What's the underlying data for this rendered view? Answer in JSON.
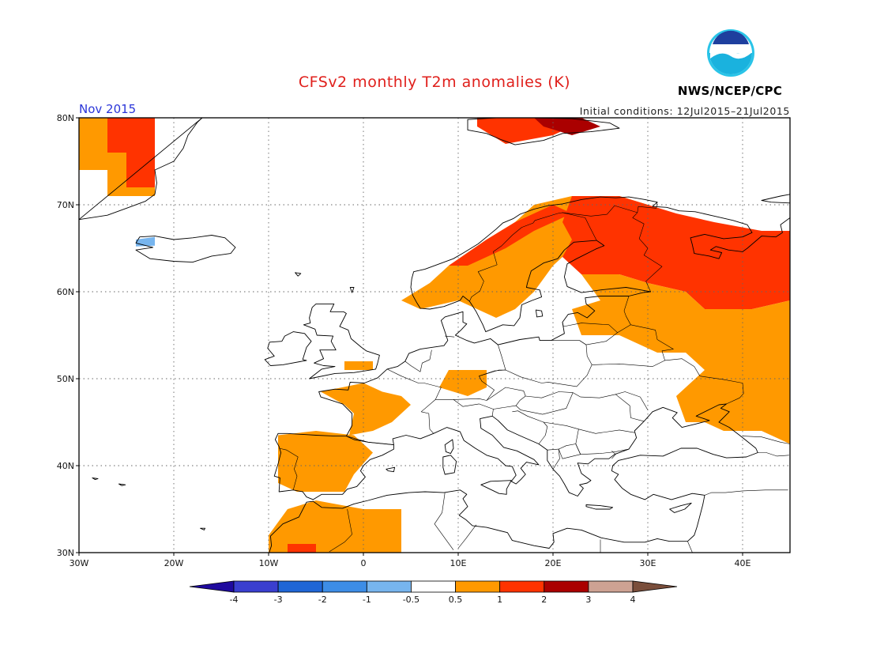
{
  "header": {
    "title": "CFSv2 monthly T2m anomalies (K)",
    "agency": "NWS/NCEP/CPC",
    "logo_text": "NOAA",
    "month_label": "Nov 2015",
    "initial_conditions": "Initial conditions: 12Jul2015–21Jul2015"
  },
  "map": {
    "lon_range": [
      -30,
      45
    ],
    "lat_range": [
      30,
      80
    ],
    "lon_ticks": [
      {
        "value": -30,
        "label": "30W"
      },
      {
        "value": -20,
        "label": "20W"
      },
      {
        "value": -10,
        "label": "10W"
      },
      {
        "value": 0,
        "label": "0"
      },
      {
        "value": 10,
        "label": "10E"
      },
      {
        "value": 20,
        "label": "20E"
      },
      {
        "value": 30,
        "label": "30E"
      },
      {
        "value": 40,
        "label": "40E"
      }
    ],
    "lat_ticks": [
      {
        "value": 30,
        "label": "30N"
      },
      {
        "value": 40,
        "label": "40N"
      },
      {
        "value": 50,
        "label": "50N"
      },
      {
        "value": 60,
        "label": "60N"
      },
      {
        "value": 70,
        "label": "70N"
      },
      {
        "value": 80,
        "label": "80N"
      }
    ],
    "grid": true,
    "anomaly_regions": [
      {
        "class": "0.5-1",
        "color": "#ff9900",
        "lonlat": [
          [
            -30,
            80
          ],
          [
            -22,
            80
          ],
          [
            -22,
            71
          ],
          [
            -27,
            71
          ],
          [
            -27,
            74
          ],
          [
            -30,
            74
          ]
        ]
      },
      {
        "class": "1-2",
        "color": "#ff3300",
        "lonlat": [
          [
            -27,
            80
          ],
          [
            -22,
            80
          ],
          [
            -22,
            72
          ],
          [
            -25,
            72
          ],
          [
            -25,
            76
          ],
          [
            -27,
            76
          ]
        ]
      },
      {
        "class": "0.5-1",
        "color": "#ff9900",
        "lonlat": [
          [
            4,
            59
          ],
          [
            7,
            61
          ],
          [
            9,
            63
          ],
          [
            13,
            66
          ],
          [
            16,
            68
          ],
          [
            18,
            70
          ],
          [
            22,
            71
          ],
          [
            27,
            71
          ],
          [
            30,
            70
          ],
          [
            29,
            68
          ],
          [
            26,
            66
          ],
          [
            23,
            66
          ],
          [
            20,
            63
          ],
          [
            18,
            60
          ],
          [
            16,
            58
          ],
          [
            14,
            57
          ],
          [
            12,
            58
          ],
          [
            10,
            59
          ],
          [
            6,
            58
          ]
        ]
      },
      {
        "class": "1-2",
        "color": "#ff3300",
        "lonlat": [
          [
            9,
            63
          ],
          [
            13,
            66
          ],
          [
            16,
            68
          ],
          [
            18,
            69
          ],
          [
            20,
            70
          ],
          [
            22,
            69
          ],
          [
            18,
            67
          ],
          [
            15,
            65
          ],
          [
            11,
            63
          ]
        ]
      },
      {
        "class": "1-2",
        "color": "#ff3300",
        "lonlat": [
          [
            22,
            71
          ],
          [
            27,
            71
          ],
          [
            30,
            70
          ],
          [
            33,
            69
          ],
          [
            37,
            68
          ],
          [
            42,
            67
          ],
          [
            45,
            67
          ],
          [
            45,
            59
          ],
          [
            41,
            58
          ],
          [
            36,
            58
          ],
          [
            34,
            60
          ],
          [
            30,
            61
          ],
          [
            27,
            62
          ],
          [
            23,
            62
          ],
          [
            21,
            64
          ],
          [
            22,
            66
          ],
          [
            21,
            68
          ]
        ]
      },
      {
        "class": "0.5-1",
        "color": "#ff9900",
        "lonlat": [
          [
            23,
            62
          ],
          [
            27,
            62
          ],
          [
            30,
            61
          ],
          [
            34,
            60
          ],
          [
            36,
            58
          ],
          [
            41,
            58
          ],
          [
            45,
            59
          ],
          [
            45,
            42.5
          ],
          [
            42,
            44
          ],
          [
            38,
            44
          ],
          [
            36,
            45
          ],
          [
            34,
            45
          ],
          [
            33,
            48
          ],
          [
            36,
            51
          ],
          [
            34,
            53
          ],
          [
            31,
            53
          ],
          [
            27,
            55
          ],
          [
            23,
            55
          ],
          [
            22,
            58
          ],
          [
            25,
            59
          ]
        ]
      },
      {
        "class": "0.5-1",
        "color": "#ff9900",
        "lonlat": [
          [
            -4.5,
            48.5
          ],
          [
            0,
            49.5
          ],
          [
            2,
            48.5
          ],
          [
            4,
            48
          ],
          [
            5,
            47
          ],
          [
            3,
            45
          ],
          [
            1,
            44
          ],
          [
            -1.5,
            43.5
          ],
          [
            -1,
            46
          ],
          [
            -2,
            47
          ]
        ]
      },
      {
        "class": "0.5-1",
        "color": "#ff9900",
        "lonlat": [
          [
            -2,
            51
          ],
          [
            1,
            51
          ],
          [
            1,
            52
          ],
          [
            -2,
            52
          ]
        ]
      },
      {
        "class": "0.5-1",
        "color": "#ff9900",
        "lonlat": [
          [
            9,
            51
          ],
          [
            13,
            51
          ],
          [
            13,
            49
          ],
          [
            11,
            48
          ],
          [
            8,
            49
          ]
        ]
      },
      {
        "class": "0.5-1",
        "color": "#ff9900",
        "lonlat": [
          [
            -9,
            43.5
          ],
          [
            -5,
            44
          ],
          [
            -1,
            43.5
          ],
          [
            1,
            41.5
          ],
          [
            -1,
            39
          ],
          [
            -2,
            37
          ],
          [
            -7,
            37
          ],
          [
            -9,
            38
          ],
          [
            -9,
            41
          ]
        ]
      },
      {
        "class": "0.5-1",
        "color": "#ff9900",
        "lonlat": [
          [
            -10,
            30
          ],
          [
            -10,
            32
          ],
          [
            -8,
            35
          ],
          [
            -5,
            36
          ],
          [
            0,
            35
          ],
          [
            4,
            35
          ],
          [
            4,
            30
          ]
        ]
      },
      {
        "class": "1-2",
        "color": "#ff3300",
        "lonlat": [
          [
            -8,
            30
          ],
          [
            -5,
            30
          ],
          [
            -5,
            31
          ],
          [
            -8,
            31
          ]
        ]
      },
      {
        "class": "1-2",
        "color": "#ff3300",
        "lonlat": [
          [
            12,
            80
          ],
          [
            18,
            80
          ],
          [
            22,
            79
          ],
          [
            20,
            78
          ],
          [
            15,
            77
          ],
          [
            12,
            79
          ]
        ]
      },
      {
        "class": "2-3",
        "color": "#aa0000",
        "lonlat": [
          [
            18,
            80
          ],
          [
            23,
            80
          ],
          [
            25,
            79
          ],
          [
            22,
            78
          ],
          [
            19,
            79
          ]
        ]
      },
      {
        "class": "-1--0.5",
        "color": "#77b5ee",
        "lonlat": [
          [
            -24,
            66
          ],
          [
            -22,
            66.3
          ],
          [
            -22,
            65.3
          ],
          [
            -24,
            65.2
          ]
        ]
      }
    ]
  },
  "colorbar": {
    "labels": [
      "-4",
      "-3",
      "-2",
      "-1",
      "-0.5",
      "0.5",
      "1",
      "2",
      "3",
      "4"
    ],
    "colors": [
      "#1f0a9e",
      "#3a3fcf",
      "#1f66d6",
      "#3d8de6",
      "#77b5ee",
      "#ffffff",
      "#ff9900",
      "#ff3300",
      "#aa0000",
      "#cda293",
      "#7a4e3b"
    ]
  },
  "legend_colors": {
    "title": "#e0201c",
    "month_label": "#2a35d8"
  }
}
